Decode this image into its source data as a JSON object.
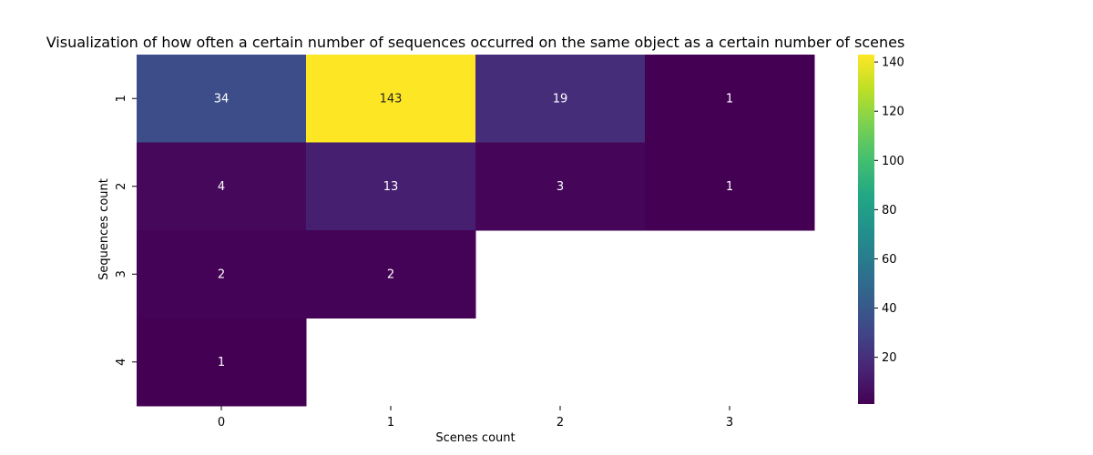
{
  "chart_data": {
    "type": "heatmap",
    "title": "Visualization of how often a certain number of sequences occurred on the same object as a certain number of scenes",
    "xlabel": "Scenes count",
    "ylabel": "Sequences count",
    "x_categories": [
      "0",
      "1",
      "2",
      "3"
    ],
    "y_categories": [
      "1",
      "2",
      "3",
      "4"
    ],
    "values": [
      [
        34,
        143,
        19,
        1
      ],
      [
        4,
        13,
        3,
        1
      ],
      [
        2,
        2,
        null,
        null
      ],
      [
        1,
        null,
        null,
        null
      ]
    ],
    "colormap": "viridis",
    "color_range": [
      1,
      143
    ],
    "colorbar_ticks": [
      20,
      40,
      60,
      80,
      100,
      120,
      140
    ],
    "annotations": true,
    "grid": false
  }
}
